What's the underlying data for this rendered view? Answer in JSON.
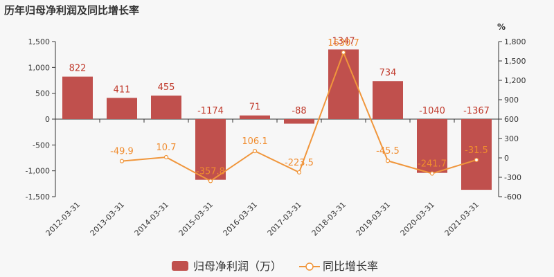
{
  "chart_data": {
    "title": "历年归母净利润及同比增长率",
    "type": "bar",
    "categories": [
      "2012-03-31",
      "2013-03-31",
      "2014-03-31",
      "2015-03-31",
      "2016-03-31",
      "2017-03-31",
      "2018-03-31",
      "2019-03-31",
      "2020-03-31",
      "2021-03-31"
    ],
    "series": [
      {
        "name": "归母净利润（万）",
        "type": "bar",
        "axis": "left",
        "color": "#c0504d",
        "values": [
          822,
          411,
          455,
          -1174,
          71,
          -88,
          1347,
          734,
          -1040,
          -1367
        ],
        "labels": [
          "822",
          "411",
          "455",
          "-1174",
          "71",
          "-88",
          "1347",
          "734",
          "-1040",
          "-1367"
        ]
      },
      {
        "name": "同比增长率",
        "type": "line",
        "axis": "right",
        "color": "#f0963c",
        "values": [
          null,
          -49.9,
          10.7,
          -357.8,
          106.1,
          -223.5,
          1630.7,
          -45.5,
          -241.7,
          -31.5
        ],
        "labels": [
          "",
          "-49.9",
          "10.7",
          "-357.8",
          "106.1",
          "-223.5",
          "1630.7",
          "-45.5",
          "-241.7",
          "-31.5"
        ]
      }
    ],
    "y_left": {
      "min": -1500,
      "max": 1500,
      "ticks": [
        1500,
        1000,
        500,
        0,
        -500,
        -1000,
        -1500
      ],
      "tick_labels": [
        "1,500",
        "1,000",
        "500",
        "0",
        "-500",
        "-1,000",
        "-1,500"
      ]
    },
    "y_right": {
      "label": "%",
      "min": -600,
      "max": 1800,
      "ticks": [
        1800,
        1500,
        1200,
        900,
        600,
        300,
        0,
        -300,
        -600
      ],
      "tick_labels": [
        "1,800",
        "1,500",
        "1,200",
        "900",
        "600",
        "300",
        "0",
        "-300",
        "-600"
      ]
    },
    "legend_position": "bottom-center",
    "grid": false
  }
}
